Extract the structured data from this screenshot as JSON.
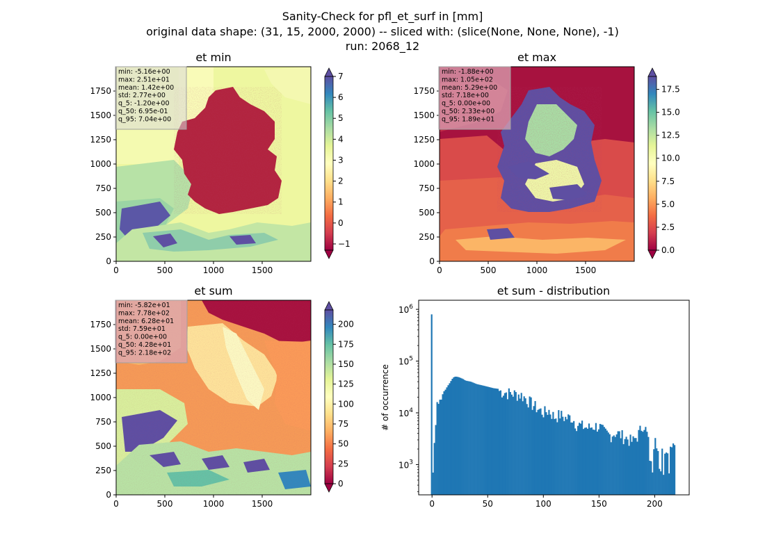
{
  "figure": {
    "title_lines": [
      "Sanity-Check for pfl_et_surf in [mm]",
      "original data shape: (31, 15, 2000, 2000) -- sliced with: (slice(None, None, None), -1)",
      "run: 2068_12"
    ]
  },
  "chart_data": [
    {
      "type": "heatmap",
      "title": "et min",
      "xlim": [
        0,
        2000
      ],
      "ylim": [
        0,
        2000
      ],
      "xticks": [
        "0",
        "500",
        "1000",
        "1500"
      ],
      "yticks": [
        "0",
        "250",
        "500",
        "750",
        "1000",
        "1250",
        "1500",
        "1750"
      ],
      "colormap": "Spectral",
      "colorbar": {
        "range": [
          -1.3,
          7.0
        ],
        "ticks": [
          "−1",
          "0",
          "1",
          "2",
          "3",
          "4",
          "5",
          "6",
          "7"
        ],
        "extend": "both"
      },
      "stats": [
        "min: -5.16e+00",
        "max: 2.51e+01",
        "mean: 1.42e+00",
        "std: 2.77e+00",
        "q_5: -1.20e+00",
        "q_50: 6.95e-01",
        "q_95: 7.04e+00"
      ],
      "stats_box_color": "#d9d9d9"
    },
    {
      "type": "heatmap",
      "title": "et max",
      "xlim": [
        0,
        2000
      ],
      "ylim": [
        0,
        2000
      ],
      "xticks": [
        "0",
        "500",
        "1000",
        "1500"
      ],
      "yticks": [
        "0",
        "250",
        "500",
        "750",
        "1000",
        "1250",
        "1500",
        "1750"
      ],
      "colormap": "Spectral",
      "colorbar": {
        "range": [
          0,
          18.9
        ],
        "ticks": [
          "0.0",
          "2.5",
          "5.0",
          "7.5",
          "10.0",
          "12.5",
          "15.0",
          "17.5"
        ],
        "extend": "both"
      },
      "stats": [
        "min: -1.88e+00",
        "max: 1.05e+02",
        "mean: 5.29e+00",
        "std: 7.18e+00",
        "q_5: 0.00e+00",
        "q_50: 2.33e+00",
        "q_95: 1.89e+01"
      ],
      "stats_box_color": "#d9a3b3"
    },
    {
      "type": "heatmap",
      "title": "et sum",
      "xlim": [
        0,
        2000
      ],
      "ylim": [
        0,
        2000
      ],
      "xticks": [
        "0",
        "500",
        "1000",
        "1500"
      ],
      "yticks": [
        "0",
        "250",
        "500",
        "750",
        "1000",
        "1250",
        "1500",
        "1750"
      ],
      "colormap": "Spectral",
      "colorbar": {
        "range": [
          0,
          218
        ],
        "ticks": [
          "0",
          "25",
          "50",
          "75",
          "100",
          "125",
          "150",
          "175",
          "200"
        ],
        "extend": "both"
      },
      "stats": [
        "min: -5.82e+01",
        "max: 7.78e+02",
        "mean: 6.28e+01",
        "std: 7.59e+01",
        "q_5: 0.00e+00",
        "q_50: 4.28e+01",
        "q_95: 2.18e+02"
      ],
      "stats_box_color": "#d9a3b3"
    },
    {
      "type": "bar",
      "title": "et sum - distribution",
      "ylabel": "# of occurrence",
      "xlabel": "",
      "yscale": "log",
      "xlim": [
        -12,
        231
      ],
      "ylim": [
        260,
        1500000
      ],
      "xticks": [
        "0",
        "50",
        "100",
        "150",
        "200"
      ],
      "yticks": [
        "10^3",
        "10^4",
        "10^5",
        "10^6"
      ],
      "bar_color": "#1f77b4",
      "bin_range": [
        -1,
        218
      ],
      "bin_width": 1.24,
      "series": [
        {
          "x": [
            0,
            1,
            2,
            3,
            4,
            5,
            6,
            7,
            8,
            10,
            12,
            14,
            16,
            18,
            20,
            22,
            24,
            26,
            28,
            30,
            35,
            40,
            45,
            50,
            55,
            60,
            65,
            70,
            75,
            80,
            85,
            90,
            95,
            100,
            105,
            110,
            115,
            120,
            125,
            130,
            135,
            140,
            145,
            150,
            155,
            160,
            165,
            170,
            175,
            180,
            185,
            190,
            195,
            200,
            205,
            210,
            215,
            218
          ],
          "values": [
            800000,
            700,
            2500,
            4000,
            12000,
            20000,
            14000,
            18000,
            17000,
            25000,
            28000,
            33000,
            38000,
            45000,
            50000,
            50000,
            49000,
            47000,
            45000,
            42000,
            40000,
            36000,
            34000,
            32000,
            30000,
            29000,
            27000,
            26000,
            25000,
            24000,
            20000,
            16000,
            13000,
            11000,
            12000,
            9000,
            10000,
            8500,
            9000,
            6500,
            6000,
            5500,
            6000,
            6000,
            4500,
            4000,
            4500,
            4000,
            3500,
            3000,
            4000,
            7000,
            3000,
            3000,
            2500,
            2500,
            2000,
            2400
          ]
        }
      ]
    }
  ]
}
